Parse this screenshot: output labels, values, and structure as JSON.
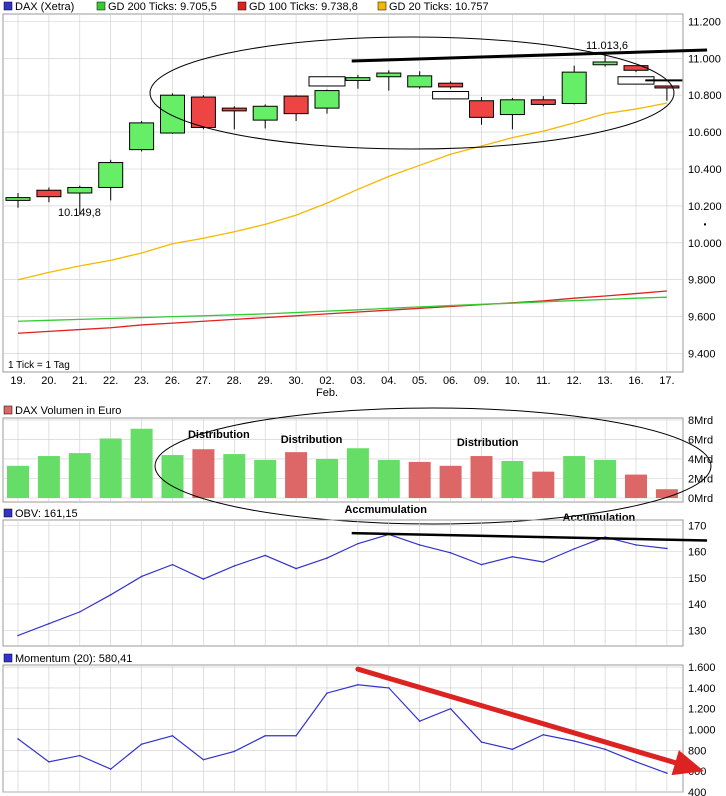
{
  "colors": {
    "gd200": "#33cc33",
    "gd100": "#dd2222",
    "gd20": "#f5b800",
    "up": "#66ee66",
    "down": "#ee4444",
    "vol_up": "#66dd66",
    "vol_down": "#dd6666",
    "obv": "#3333cc",
    "momentum": "#3333cc",
    "annotation_red": "#dd2222",
    "annotation_green": "#22aa22",
    "grid": "#cccccc"
  },
  "chart_data": [
    {
      "type": "candlestick",
      "legend": [
        {
          "key": "price",
          "label": "DAX (Xetra)",
          "color": "#3333cc"
        },
        {
          "key": "gd200",
          "label": "GD 200 Ticks: 9.705,5",
          "color": "#33cc33"
        },
        {
          "key": "gd100",
          "label": "GD 100 Ticks: 9.738,8",
          "color": "#dd2222"
        },
        {
          "key": "gd20",
          "label": "GD 20 Ticks: 10.757",
          "color": "#f5b800"
        }
      ],
      "categories": [
        "19.",
        "20.",
        "21.",
        "22.",
        "23.",
        "26.",
        "27.",
        "28.",
        "29.",
        "30.",
        "02.",
        "03.",
        "04.",
        "05.",
        "06.",
        "09.",
        "10.",
        "11.",
        "12.",
        "13.",
        "16.",
        "17."
      ],
      "month_label": "Feb.",
      "month_label_index": 10,
      "yticks": [
        9400,
        9600,
        9800,
        10000,
        10200,
        10400,
        10600,
        10800,
        11000,
        11200
      ],
      "ytick_labels": [
        "9.400",
        "9.600",
        "9.800",
        "10.000",
        "10.200",
        "10.400",
        "10.600",
        "10.800",
        "11.000",
        "11.200"
      ],
      "ylim": [
        9300,
        11240
      ],
      "candles": [
        {
          "open": 10230,
          "high": 10270,
          "low": 10190,
          "close": 10245
        },
        {
          "open": 10285,
          "high": 10300,
          "low": 10220,
          "close": 10250
        },
        {
          "open": 10270,
          "high": 10310,
          "low": 10150,
          "close": 10300
        },
        {
          "open": 10300,
          "high": 10450,
          "low": 10230,
          "close": 10435
        },
        {
          "open": 10505,
          "high": 10660,
          "low": 10495,
          "close": 10650
        },
        {
          "open": 10595,
          "high": 10810,
          "low": 10590,
          "close": 10800
        },
        {
          "open": 10790,
          "high": 10800,
          "low": 10615,
          "close": 10625
        },
        {
          "open": 10730,
          "high": 10740,
          "low": 10615,
          "close": 10715
        },
        {
          "open": 10665,
          "high": 10750,
          "low": 10620,
          "close": 10740
        },
        {
          "open": 10795,
          "high": 10800,
          "low": 10660,
          "close": 10700
        },
        {
          "open": 10730,
          "high": 10830,
          "low": 10700,
          "close": 10825
        },
        {
          "open": 10880,
          "high": 10910,
          "low": 10835,
          "close": 10895
        },
        {
          "open": 10900,
          "high": 10935,
          "low": 10825,
          "close": 10920
        },
        {
          "open": 10845,
          "high": 10930,
          "low": 10835,
          "close": 10905
        },
        {
          "open": 10865,
          "high": 10875,
          "low": 10835,
          "close": 10845
        },
        {
          "open": 10770,
          "high": 10790,
          "low": 10640,
          "close": 10680
        },
        {
          "open": 10695,
          "high": 10785,
          "low": 10615,
          "close": 10775
        },
        {
          "open": 10775,
          "high": 10795,
          "low": 10740,
          "close": 10750
        },
        {
          "open": 10755,
          "high": 10960,
          "low": 10750,
          "close": 10925
        },
        {
          "open": 10965,
          "high": 11015,
          "low": 10955,
          "close": 10980
        },
        {
          "open": 10960,
          "high": 10960,
          "low": 10925,
          "close": 10935
        },
        {
          "open": 10850,
          "high": 10850,
          "low": 10770,
          "close": 10845
        }
      ],
      "outline_candles": [
        {
          "index": 10,
          "top": 10900,
          "bottom": 10850
        },
        {
          "index": 14,
          "top": 10820,
          "bottom": 10780
        },
        {
          "index": 20,
          "top": 10900,
          "bottom": 10860
        }
      ],
      "series": [
        {
          "key": "gd20",
          "values": [
            9800,
            9840,
            9875,
            9905,
            9945,
            9995,
            10025,
            10060,
            10100,
            10150,
            10215,
            10290,
            10360,
            10420,
            10480,
            10525,
            10570,
            10605,
            10650,
            10700,
            10725,
            10757
          ]
        },
        {
          "key": "gd100",
          "values": [
            9510,
            9520,
            9530,
            9540,
            9555,
            9565,
            9575,
            9585,
            9595,
            9605,
            9615,
            9625,
            9635,
            9645,
            9655,
            9665,
            9675,
            9685,
            9700,
            9712,
            9725,
            9738.8
          ]
        },
        {
          "key": "gd200",
          "values": [
            9575,
            9580,
            9585,
            9590,
            9595,
            9600,
            9605,
            9610,
            9615,
            9622,
            9630,
            9637,
            9645,
            9653,
            9660,
            9667,
            9673,
            9680,
            9687,
            9693,
            9700,
            9705.5
          ]
        }
      ],
      "annotations": [
        {
          "text": "10.149,8",
          "index": 2,
          "value": 10149.8,
          "color": "#999999"
        },
        {
          "text": "11.013,6",
          "index": 19,
          "value": 11013.6,
          "color": "#bbbbbb"
        },
        {
          "text": "1 Tick = 1 Tag",
          "color": "#999999"
        }
      ],
      "resistance_line": {
        "start_index": 10.8,
        "start_value": 10985,
        "end_index": 22.3,
        "end_value": 11045
      },
      "short_line": {
        "start_index": 20.3,
        "end_index": 21.5,
        "value": 10880
      }
    },
    {
      "type": "bar",
      "title": "DAX Volumen in Euro",
      "categories": [
        "19.",
        "20.",
        "21.",
        "22.",
        "23.",
        "26.",
        "27.",
        "28.",
        "29.",
        "30.",
        "02.",
        "03.",
        "04.",
        "05.",
        "06.",
        "09.",
        "10.",
        "11.",
        "12.",
        "13.",
        "16.",
        "17."
      ],
      "values": [
        3.3,
        4.3,
        4.6,
        6.1,
        7.1,
        4.4,
        5.0,
        4.5,
        3.9,
        4.7,
        4.0,
        5.1,
        3.9,
        3.7,
        3.3,
        4.3,
        3.8,
        2.7,
        4.3,
        3.9,
        2.4,
        0.9
      ],
      "direction": [
        "up",
        "up",
        "up",
        "up",
        "up",
        "up",
        "down",
        "up",
        "up",
        "down",
        "up",
        "up",
        "up",
        "down",
        "down",
        "down",
        "up",
        "down",
        "up",
        "up",
        "down",
        "down"
      ],
      "yticks": [
        0,
        2,
        4,
        6,
        8
      ],
      "ytick_labels": [
        "0Mrd",
        "2Mrd",
        "4Mrd",
        "6Mrd",
        "8Mrd"
      ],
      "ylim": [
        0,
        8.2
      ],
      "annotations": [
        {
          "text": "Distribution",
          "index": 6.5,
          "color": "#dd2222"
        },
        {
          "text": "Distribution",
          "index": 9.5,
          "color": "#dd2222"
        },
        {
          "text": "Distribution",
          "index": 15.2,
          "color": "#dd2222"
        },
        {
          "text": "Accmumulation",
          "index": 11.9,
          "color": "#22aa22"
        },
        {
          "text": "Accumulation",
          "index": 18.8,
          "color": "#22aa22"
        }
      ]
    },
    {
      "type": "line",
      "title": "OBV: 161,15",
      "categories": [
        "19.",
        "20.",
        "21.",
        "22.",
        "23.",
        "26.",
        "27.",
        "28.",
        "29.",
        "30.",
        "02.",
        "03.",
        "04.",
        "05.",
        "06.",
        "09.",
        "10.",
        "11.",
        "12.",
        "13.",
        "16.",
        "17."
      ],
      "values": [
        128,
        132.5,
        137,
        143.5,
        150.5,
        155,
        149.5,
        154.5,
        158.5,
        153.5,
        157.5,
        163,
        166.5,
        162.5,
        159.5,
        155,
        158,
        156,
        161,
        165.5,
        162.5,
        161.15
      ],
      "yticks": [
        130,
        140,
        150,
        160,
        170
      ],
      "ytick_labels": [
        "130",
        "140",
        "150",
        "160",
        "170"
      ],
      "ylim": [
        124,
        172
      ],
      "resistance_line": {
        "start_index": 10.8,
        "start_value": 167,
        "end_index": 22.3,
        "end_value": 164.2
      }
    },
    {
      "type": "line",
      "title": "Momentum (20): 580,41",
      "categories": [
        "19.",
        "20.",
        "21.",
        "22.",
        "23.",
        "26.",
        "27.",
        "28.",
        "29.",
        "30.",
        "02.",
        "03.",
        "04.",
        "05.",
        "06.",
        "09.",
        "10.",
        "11.",
        "12.",
        "13.",
        "16.",
        "17."
      ],
      "values": [
        910,
        690,
        750,
        620,
        860,
        940,
        710,
        790,
        940,
        940,
        1350,
        1430,
        1400,
        1080,
        1200,
        880,
        810,
        950,
        890,
        810,
        690,
        580.41
      ],
      "yticks": [
        400,
        600,
        800,
        1000,
        1200,
        1400,
        1600
      ],
      "ytick_labels": [
        "400",
        "600",
        "800",
        "1.000",
        "1.200",
        "1.400",
        "1.600"
      ],
      "ylim": [
        400,
        1620
      ],
      "trend_arrow": {
        "start_index": 11.0,
        "start_value": 1580,
        "end_index": 22.8,
        "end_value": 600,
        "color": "#dd2222"
      }
    }
  ]
}
